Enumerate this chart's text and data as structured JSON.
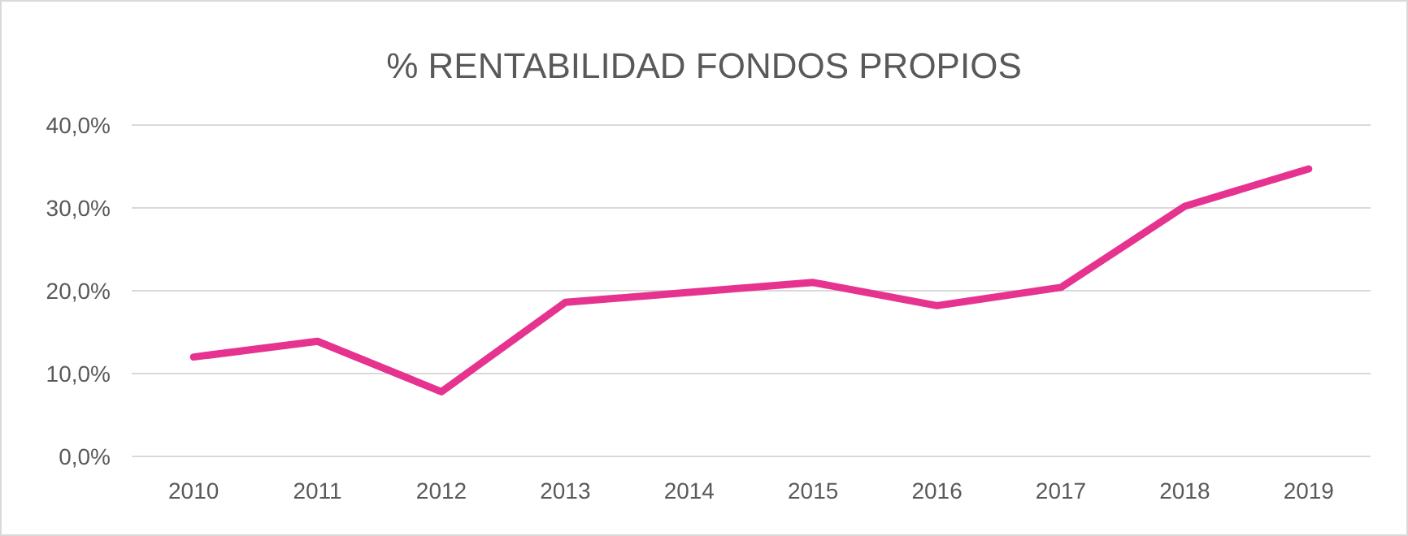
{
  "chart_data": {
    "type": "line",
    "title": "% RENTABILIDAD FONDOS PROPIOS",
    "categories": [
      "2010",
      "2011",
      "2012",
      "2013",
      "2014",
      "2015",
      "2016",
      "2017",
      "2018",
      "2019"
    ],
    "series": [
      {
        "color": "#e6338f",
        "values": [
          12.0,
          13.9,
          7.8,
          18.6,
          19.8,
          21.0,
          18.2,
          20.4,
          30.2,
          34.7
        ]
      }
    ],
    "ylim": [
      0,
      40
    ],
    "yticks": [
      {
        "value": 0,
        "label": "0,0%"
      },
      {
        "value": 10,
        "label": "10,0%"
      },
      {
        "value": 20,
        "label": "20,0%"
      },
      {
        "value": 30,
        "label": "30,0%"
      },
      {
        "value": 40,
        "label": "40,0%"
      }
    ],
    "grid": "y",
    "marker": "none",
    "line_style": "solid"
  }
}
